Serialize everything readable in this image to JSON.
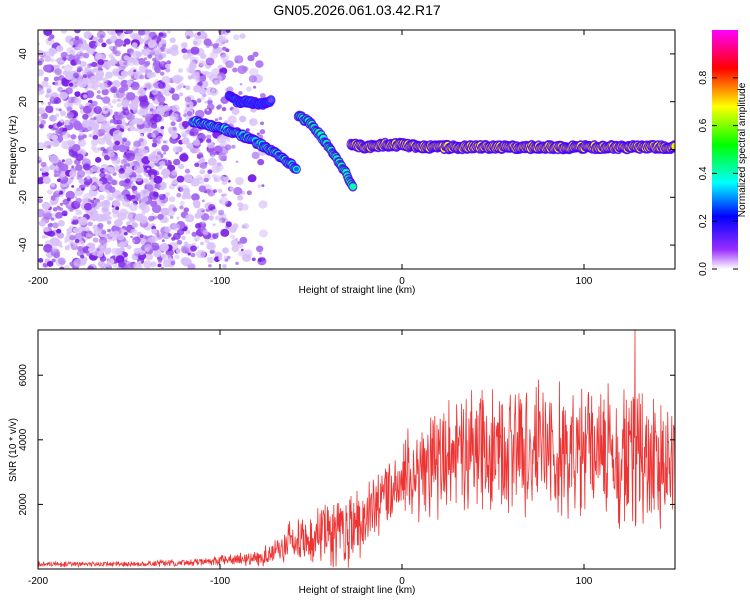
{
  "title": "GN05.2026.061.03.42.R17",
  "chart_data": [
    {
      "type": "heatmap",
      "name": "spectrogram",
      "xlabel": "Height of straight line (km)",
      "ylabel": "Frequency (Hz)",
      "xlim": [
        -200,
        150
      ],
      "ylim": [
        -50,
        50
      ],
      "xticks": [
        -200,
        -100,
        0,
        100
      ],
      "yticks": [
        -40,
        -20,
        0,
        20,
        40
      ],
      "colorbar": {
        "label": "Normalized spectral amplitude",
        "range": [
          0.0,
          1.0
        ],
        "ticks": [
          0.0,
          0.2,
          0.4,
          0.6,
          0.8
        ],
        "tick_labels": [
          "0.0",
          "0.2",
          "0.4",
          "0.6",
          "0.8"
        ],
        "colormap": [
          "#ffffff",
          "#8a2be2",
          "#0000ff",
          "#00ffff",
          "#00ff00",
          "#ffff00",
          "#ff0000",
          "#ff00ff"
        ]
      },
      "noise_region": {
        "x_range": [
          -200,
          -95
        ],
        "y_range": [
          -50,
          50
        ],
        "amplitude": 0.15
      },
      "traces": [
        {
          "name": "descending-branch-1",
          "x": [
            -115,
            -105,
            -95,
            -85,
            -75,
            -65,
            -58
          ],
          "y": [
            12,
            10,
            8,
            5,
            1,
            -4,
            -8
          ],
          "amplitude": 0.35
        },
        {
          "name": "descending-branch-2",
          "x": [
            -57,
            -50,
            -45,
            -40,
            -35,
            -30,
            -27
          ],
          "y": [
            14,
            11,
            6,
            1,
            -5,
            -11,
            -16
          ],
          "amplitude": 0.4
        },
        {
          "name": "isolated-patch-upper",
          "x": [
            -95,
            -90,
            -85,
            -78,
            -72
          ],
          "y": [
            22,
            20,
            20,
            19,
            20
          ],
          "amplitude": 0.1
        },
        {
          "name": "main-band",
          "x": [
            -28,
            -20,
            -10,
            0,
            10,
            20,
            30,
            40,
            50,
            60,
            70,
            80,
            90,
            100,
            110,
            120,
            130,
            140,
            150
          ],
          "y": [
            2,
            1,
            2,
            2,
            1,
            1,
            1,
            1,
            1,
            1,
            1,
            1,
            1,
            1,
            1,
            1,
            1,
            1,
            1
          ],
          "amplitude": 0.85
        }
      ]
    },
    {
      "type": "line",
      "name": "snr",
      "xlabel": "Height of straight line (km)",
      "ylabel": "SNR (10 * v/v)",
      "xlim": [
        -200,
        150
      ],
      "ylim": [
        0,
        7400
      ],
      "xticks": [
        -200,
        -100,
        0,
        100
      ],
      "yticks": [
        2000,
        4000,
        6000
      ],
      "color": "#ee3333",
      "envelope": {
        "x": [
          -200,
          -150,
          -110,
          -80,
          -65,
          -60,
          -50,
          -40,
          -30,
          -20,
          -10,
          0,
          10,
          20,
          40,
          60,
          80,
          100,
          120,
          150
        ],
        "mean": [
          150,
          150,
          220,
          350,
          600,
          900,
          900,
          1100,
          1200,
          1700,
          2300,
          2700,
          3000,
          3300,
          3600,
          3700,
          3700,
          3600,
          3500,
          3300
        ],
        "amp": [
          80,
          80,
          120,
          250,
          450,
          700,
          800,
          1000,
          1100,
          1100,
          1100,
          1300,
          1500,
          1700,
          1800,
          1900,
          1900,
          2000,
          2000,
          1900
        ]
      },
      "peak": {
        "x": 128,
        "y": 7400
      }
    }
  ]
}
